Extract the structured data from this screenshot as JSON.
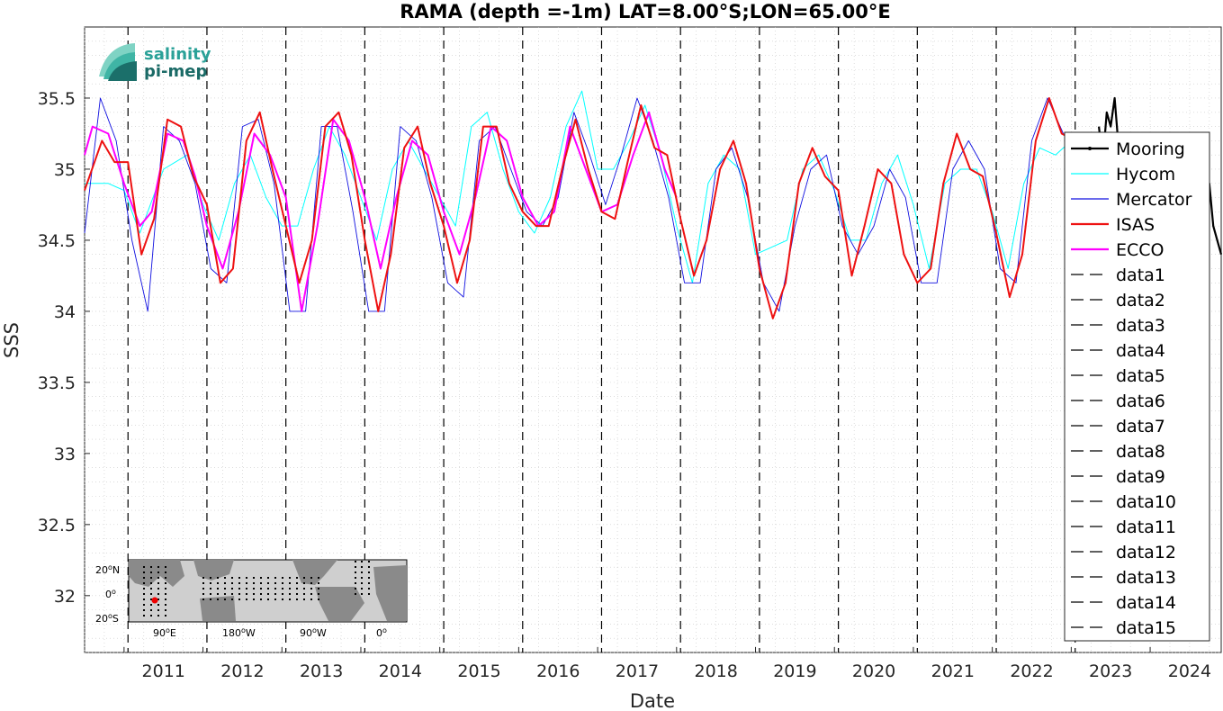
{
  "chart_data": {
    "type": "line",
    "title": "RAMA (depth =-1m) LAT=8.00°S;LON=65.00°E",
    "xlabel": "Date",
    "ylabel": "SSS",
    "xlim": [
      2010.5,
      2024.9
    ],
    "ylim": [
      31.6,
      36.0
    ],
    "x_tick_labels": [
      "2011",
      "2012",
      "2013",
      "2014",
      "2015",
      "2016",
      "2017",
      "2018",
      "2019",
      "2020",
      "2021",
      "2022",
      "2023",
      "2024"
    ],
    "y_tick_labels": [
      "32",
      "32.5",
      "33",
      "33.5",
      "34",
      "34.5",
      "35",
      "35.5"
    ],
    "y_ticks": [
      32,
      32.5,
      33,
      33.5,
      34,
      34.5,
      35,
      35.5
    ],
    "grid": "minor dotted",
    "legend_position": "right",
    "vertical_markers": [
      2011.05,
      2012.05,
      2013.05,
      2014.05,
      2015.05,
      2016.05,
      2017.05,
      2018.05,
      2019.05,
      2020.05,
      2021.05,
      2022.05,
      2023.05
    ],
    "series": [
      {
        "name": "Mooring",
        "color": "#000000",
        "x": [
          2023.35,
          2023.4,
          2023.45,
          2023.5,
          2023.55,
          2023.6,
          2023.65,
          2024.6,
          2024.65,
          2024.7,
          2024.75,
          2024.8,
          2024.85,
          2024.9
        ],
        "y": [
          35.3,
          35.05,
          35.4,
          35.3,
          35.5,
          35.15,
          35.0,
          34.9,
          35.1,
          34.8,
          34.9,
          34.6,
          34.5,
          34.4
        ]
      },
      {
        "name": "Hycom",
        "color": "#00ffff",
        "x": [
          2010.5,
          2010.8,
          2011.0,
          2011.2,
          2011.5,
          2011.8,
          2012.0,
          2012.2,
          2012.4,
          2012.6,
          2012.8,
          2013.0,
          2013.2,
          2013.4,
          2013.6,
          2013.8,
          2014.0,
          2014.2,
          2014.4,
          2014.6,
          2014.8,
          2015.0,
          2015.2,
          2015.4,
          2015.6,
          2015.8,
          2016.0,
          2016.2,
          2016.4,
          2016.6,
          2016.8,
          2017.0,
          2017.2,
          2017.4,
          2017.6,
          2017.8,
          2018.0,
          2018.2,
          2018.4,
          2018.6,
          2018.8,
          2019.0,
          2019.2,
          2019.4,
          2019.6,
          2019.8,
          2020.0,
          2020.2,
          2020.4,
          2020.6,
          2020.8,
          2021.0,
          2021.2,
          2021.4,
          2021.6,
          2021.8,
          2022.0,
          2022.2,
          2022.4,
          2022.6,
          2022.8,
          2023.0
        ],
        "y": [
          34.9,
          34.9,
          34.85,
          34.55,
          35.0,
          35.1,
          34.75,
          34.5,
          34.9,
          35.1,
          34.8,
          34.6,
          34.6,
          35.0,
          35.3,
          35.1,
          34.8,
          34.5,
          35.0,
          35.2,
          35.0,
          34.8,
          34.6,
          35.3,
          35.4,
          35.0,
          34.7,
          34.55,
          34.8,
          35.3,
          35.55,
          35.0,
          35.0,
          35.2,
          35.45,
          35.1,
          34.6,
          34.2,
          34.9,
          35.1,
          35.0,
          34.4,
          34.45,
          34.5,
          35.0,
          35.1,
          34.85,
          34.5,
          34.5,
          34.9,
          35.1,
          34.75,
          34.3,
          34.9,
          35.0,
          35.0,
          34.7,
          34.3,
          34.9,
          35.15,
          35.1,
          35.2
        ]
      },
      {
        "name": "Mercator",
        "color": "#1010e0",
        "x": [
          2010.5,
          2010.7,
          2010.9,
          2011.1,
          2011.3,
          2011.5,
          2011.7,
          2011.9,
          2012.1,
          2012.3,
          2012.5,
          2012.7,
          2012.9,
          2013.1,
          2013.3,
          2013.5,
          2013.7,
          2013.9,
          2014.1,
          2014.3,
          2014.5,
          2014.7,
          2014.9,
          2015.1,
          2015.3,
          2015.5,
          2015.7,
          2015.9,
          2016.1,
          2016.3,
          2016.5,
          2016.7,
          2016.9,
          2017.1,
          2017.3,
          2017.5,
          2017.7,
          2017.9,
          2018.1,
          2018.3,
          2018.5,
          2018.7,
          2018.9,
          2019.1,
          2019.3,
          2019.5,
          2019.7,
          2019.9,
          2020.1,
          2020.3,
          2020.5,
          2020.7,
          2020.9,
          2021.1,
          2021.3,
          2021.5,
          2021.7,
          2021.9,
          2022.1,
          2022.3,
          2022.5,
          2022.7,
          2022.9,
          2023.0
        ],
        "y": [
          34.55,
          35.5,
          35.2,
          34.5,
          34.0,
          35.3,
          35.2,
          34.9,
          34.3,
          34.2,
          35.3,
          35.35,
          34.9,
          34.0,
          34.0,
          35.3,
          35.3,
          34.7,
          34.0,
          34.0,
          35.3,
          35.2,
          34.8,
          34.2,
          34.1,
          35.2,
          35.3,
          35.0,
          34.7,
          34.6,
          34.8,
          35.4,
          35.1,
          34.75,
          35.1,
          35.5,
          35.2,
          34.8,
          34.2,
          34.2,
          35.0,
          35.15,
          34.8,
          34.2,
          34.0,
          34.6,
          35.0,
          35.1,
          34.6,
          34.4,
          34.6,
          35.0,
          34.8,
          34.2,
          34.2,
          35.0,
          35.2,
          35.0,
          34.3,
          34.2,
          35.2,
          35.5,
          35.25,
          35.2
        ]
      },
      {
        "name": "ISAS",
        "color": "#ee1111",
        "x": [
          2010.5,
          2010.72,
          2010.88,
          2011.05,
          2011.22,
          2011.38,
          2011.55,
          2011.72,
          2011.88,
          2012.05,
          2012.22,
          2012.38,
          2012.55,
          2012.72,
          2012.88,
          2013.05,
          2013.22,
          2013.38,
          2013.55,
          2013.72,
          2013.88,
          2014.05,
          2014.22,
          2014.38,
          2014.55,
          2014.72,
          2014.88,
          2015.05,
          2015.22,
          2015.38,
          2015.55,
          2015.72,
          2015.88,
          2016.05,
          2016.22,
          2016.38,
          2016.55,
          2016.72,
          2016.88,
          2017.05,
          2017.22,
          2017.38,
          2017.55,
          2017.72,
          2017.88,
          2018.05,
          2018.22,
          2018.38,
          2018.55,
          2018.72,
          2018.88,
          2019.05,
          2019.22,
          2019.38,
          2019.55,
          2019.72,
          2019.88,
          2020.05,
          2020.22,
          2020.38,
          2020.55,
          2020.72,
          2020.88,
          2021.05,
          2021.22,
          2021.38,
          2021.55,
          2021.72,
          2021.88,
          2022.05,
          2022.22,
          2022.38,
          2022.55,
          2022.72,
          2022.88,
          2023.05
        ],
        "y": [
          34.85,
          35.2,
          35.05,
          35.05,
          34.4,
          34.65,
          35.35,
          35.3,
          34.95,
          34.75,
          34.2,
          34.3,
          35.2,
          35.4,
          35.0,
          34.6,
          34.2,
          34.5,
          35.3,
          35.4,
          35.1,
          34.5,
          34.0,
          34.4,
          35.15,
          35.3,
          34.9,
          34.6,
          34.2,
          34.5,
          35.3,
          35.3,
          34.9,
          34.7,
          34.6,
          34.6,
          35.0,
          35.35,
          35.0,
          34.7,
          34.65,
          35.05,
          35.45,
          35.15,
          35.1,
          34.65,
          34.25,
          34.5,
          35.0,
          35.2,
          34.9,
          34.3,
          33.95,
          34.2,
          34.9,
          35.15,
          34.95,
          34.85,
          34.25,
          34.6,
          35.0,
          34.9,
          34.4,
          34.2,
          34.3,
          34.9,
          35.25,
          35.0,
          34.95,
          34.55,
          34.1,
          34.4,
          35.2,
          35.5,
          35.25,
          35.2
        ]
      },
      {
        "name": "ECCO",
        "color": "#ff00ff",
        "x": [
          2010.5,
          2010.6,
          2010.8,
          2011.0,
          2011.2,
          2011.35,
          2011.55,
          2011.75,
          2011.9,
          2012.05,
          2012.25,
          2012.45,
          2012.65,
          2012.85,
          2013.05,
          2013.25,
          2013.45,
          2013.65,
          2013.85,
          2014.05,
          2014.25,
          2014.45,
          2014.65,
          2014.85,
          2015.05,
          2015.25,
          2015.45,
          2015.65,
          2015.85,
          2016.05,
          2016.25,
          2016.45,
          2016.65,
          2016.85,
          2017.05,
          2017.25,
          2017.45,
          2017.65,
          2017.85,
          2018.0
        ],
        "y": [
          35.1,
          35.3,
          35.25,
          34.9,
          34.6,
          34.7,
          35.25,
          35.2,
          34.95,
          34.6,
          34.3,
          34.7,
          35.25,
          35.1,
          34.8,
          34.0,
          34.6,
          35.35,
          35.2,
          34.8,
          34.3,
          34.8,
          35.2,
          35.1,
          34.7,
          34.4,
          34.8,
          35.3,
          35.2,
          34.8,
          34.6,
          34.7,
          35.3,
          35.0,
          34.7,
          34.75,
          35.1,
          35.4,
          35.0,
          34.8
        ]
      }
    ],
    "dashed_series_names": [
      "data1",
      "data2",
      "data3",
      "data4",
      "data5",
      "data6",
      "data7",
      "data8",
      "data9",
      "data10",
      "data11",
      "data12",
      "data13",
      "data14",
      "data15"
    ]
  },
  "logo": {
    "line1": "salinity",
    "line2": "pi-mep",
    "color1": "#2aa198",
    "color2": "#1a6a66"
  },
  "inset_map": {
    "lat_labels": [
      "20",
      "0",
      "20"
    ],
    "lat_suffixes": [
      "N",
      "",
      "S"
    ],
    "lon_labels": [
      "90",
      "180",
      "90",
      "0"
    ],
    "lon_suffixes": [
      "E",
      "W",
      "W",
      ""
    ]
  }
}
